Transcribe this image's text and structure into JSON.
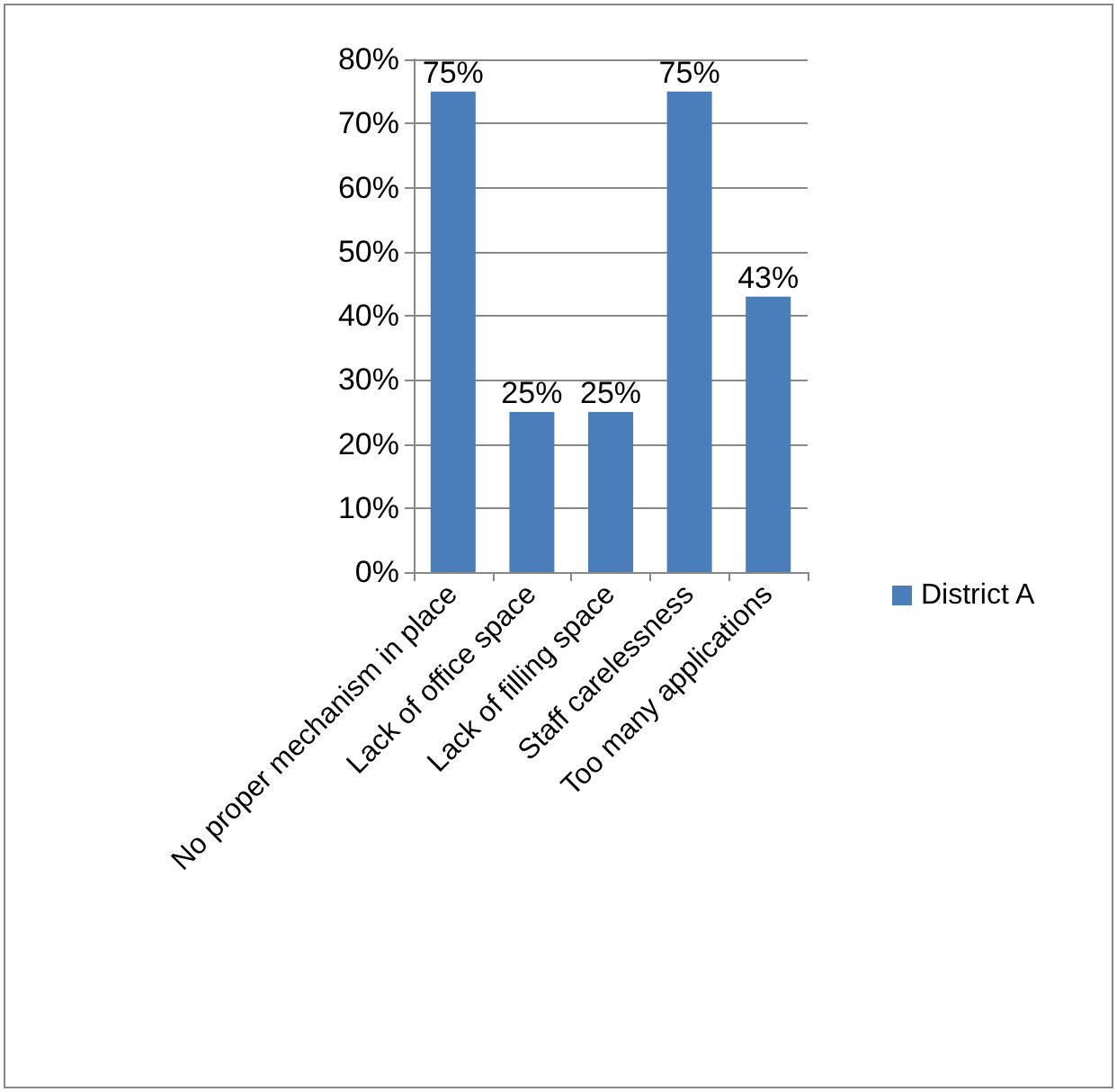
{
  "chart_data": {
    "type": "bar",
    "categories": [
      "No proper mechanism in place",
      "Lack of office space",
      "Lack of filling space",
      "Staff carelessness",
      "Too many applications"
    ],
    "series": [
      {
        "name": "District A",
        "color": "#4a7ebb",
        "values": [
          75,
          25,
          25,
          75,
          43
        ],
        "value_labels": [
          "75%",
          "25%",
          "25%",
          "75%",
          "43%"
        ]
      }
    ],
    "ylim": [
      0,
      80
    ],
    "yticks": [
      {
        "value": 0,
        "label": "0%"
      },
      {
        "value": 10,
        "label": "10%"
      },
      {
        "value": 20,
        "label": "20%"
      },
      {
        "value": 30,
        "label": "30%"
      },
      {
        "value": 40,
        "label": "40%"
      },
      {
        "value": 50,
        "label": "50%"
      },
      {
        "value": 60,
        "label": "60%"
      },
      {
        "value": 70,
        "label": "70%"
      },
      {
        "value": 80,
        "label": "80%"
      }
    ],
    "grid": "y",
    "legend": "right"
  }
}
